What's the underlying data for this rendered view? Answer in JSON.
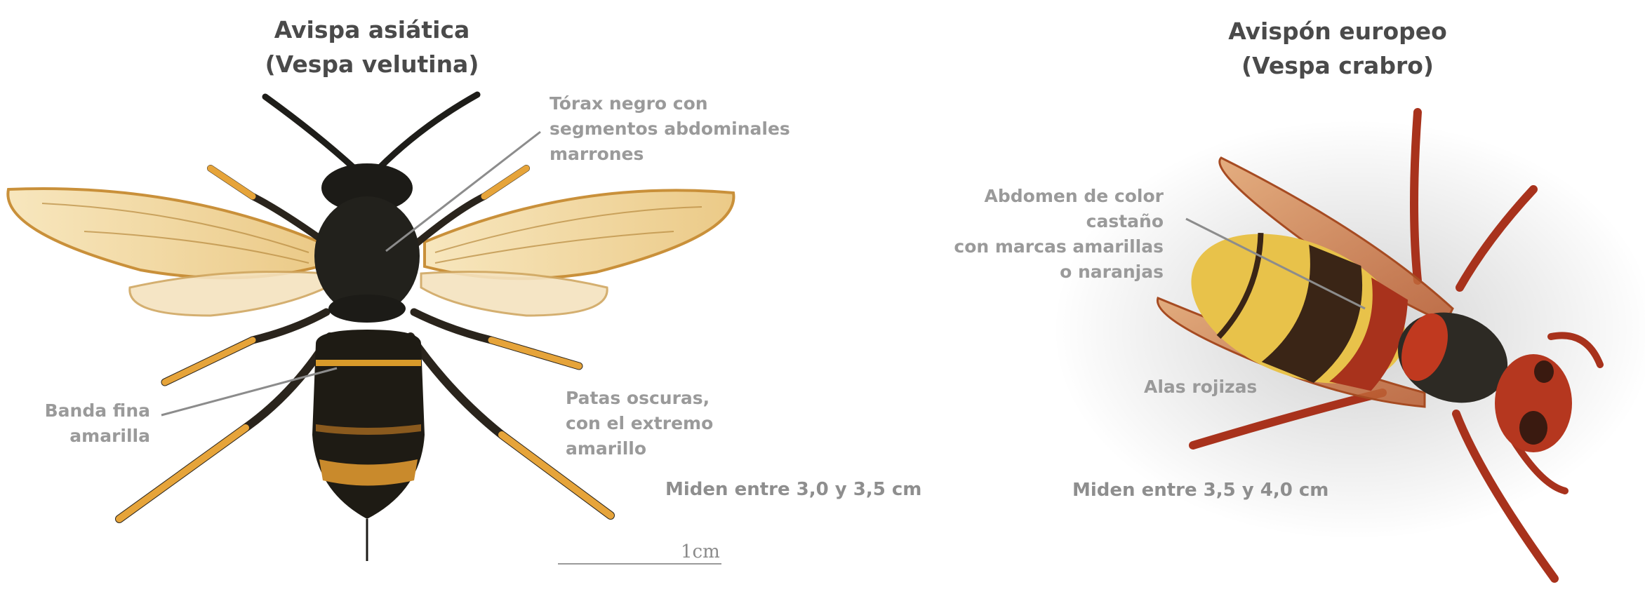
{
  "left_panel": {
    "title_line1": "Avispa asiática",
    "title_line2": "(Vespa velutina)",
    "labels": {
      "thorax": [
        "Tórax negro con",
        "segmentos abdominales",
        "marrones"
      ],
      "band": [
        "Banda fina",
        "amarilla"
      ],
      "legs": [
        "Patas oscuras,",
        "con el extremo",
        "amarillo"
      ]
    },
    "size_text": "Miden entre 3,0 y 3,5 cm",
    "scale_label": "1cm"
  },
  "right_panel": {
    "title_line1": "Avispón europeo",
    "title_line2": "(Vespa crabro)",
    "labels": {
      "abdomen": [
        "Abdomen de color castaño",
        "con marcas amarillas",
        "o naranjas"
      ],
      "wings": "Alas rojizas"
    },
    "size_text": "Miden entre 3,5 y 4,0 cm"
  },
  "colors": {
    "title": "#4a4a4a",
    "label": "#9a9a9a",
    "leader_line": "#8c8c8c",
    "velutina_body": "#1c1b17",
    "velutina_band": "#d89a2a",
    "velutina_leg_tip": "#e6a43a",
    "wing": "#f3d9a0",
    "crabro_red": "#b5371f",
    "crabro_yellow": "#e8c24a"
  }
}
